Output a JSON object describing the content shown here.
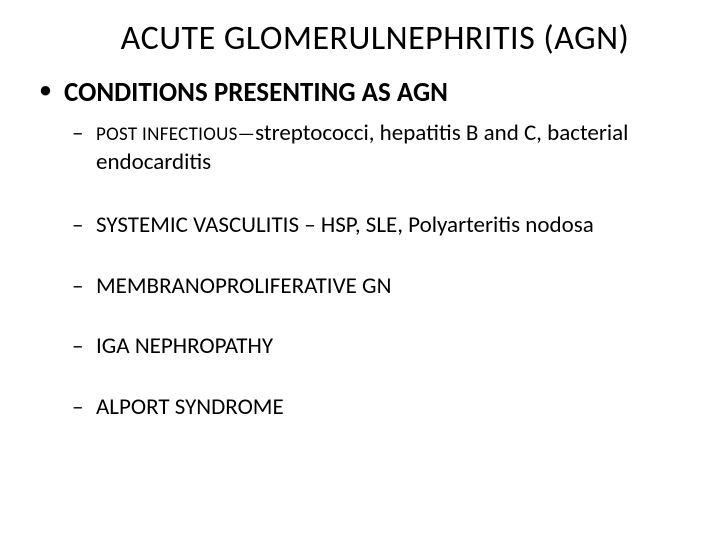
{
  "title": "ACUTE GLOMERULNEPHRITIS (AGN)",
  "heading": "CONDITIONS PRESENTING AS AGN",
  "items": {
    "i0_caps": "POST INFECTIOUS—",
    "i0_rest": "streptococci, hepatitis B and C, bacterial endocarditis",
    "i1": "SYSTEMIC VASCULITIS – HSP, SLE, Polyarteritis nodosa",
    "i2": "MEMBRANOPROLIFERATIVE GN",
    "i3": "IGA NEPHROPATHY",
    "i4": "ALPORT SYNDROME"
  }
}
